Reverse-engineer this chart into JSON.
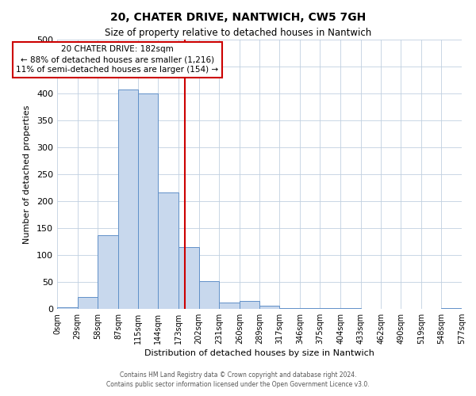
{
  "title": "20, CHATER DRIVE, NANTWICH, CW5 7GH",
  "subtitle": "Size of property relative to detached houses in Nantwich",
  "xlabel": "Distribution of detached houses by size in Nantwich",
  "ylabel": "Number of detached properties",
  "bin_edges": [
    0,
    29,
    58,
    87,
    115,
    144,
    173,
    202,
    231,
    260,
    289,
    317,
    346,
    375,
    404,
    433,
    462,
    490,
    519,
    548,
    577
  ],
  "bin_counts": [
    3,
    22,
    137,
    407,
    400,
    216,
    114,
    52,
    12,
    15,
    6,
    1,
    1,
    1,
    1,
    0,
    0,
    0,
    0,
    2
  ],
  "bar_facecolor": "#c8d8ed",
  "bar_edgecolor": "#6090c8",
  "property_size": 182,
  "vline_color": "#cc0000",
  "annotation_box_edgecolor": "#cc0000",
  "annotation_text_line1": "20 CHATER DRIVE: 182sqm",
  "annotation_text_line2": "← 88% of detached houses are smaller (1,216)",
  "annotation_text_line3": "11% of semi-detached houses are larger (154) →",
  "ylim": [
    0,
    500
  ],
  "yticks": [
    0,
    50,
    100,
    150,
    200,
    250,
    300,
    350,
    400,
    450,
    500
  ],
  "tick_labels": [
    "0sqm",
    "29sqm",
    "58sqm",
    "87sqm",
    "115sqm",
    "144sqm",
    "173sqm",
    "202sqm",
    "231sqm",
    "260sqm",
    "289sqm",
    "317sqm",
    "346sqm",
    "375sqm",
    "404sqm",
    "433sqm",
    "462sqm",
    "490sqm",
    "519sqm",
    "548sqm",
    "577sqm"
  ],
  "footer_line1": "Contains HM Land Registry data © Crown copyright and database right 2024.",
  "footer_line2": "Contains public sector information licensed under the Open Government Licence v3.0.",
  "background_color": "#ffffff",
  "grid_color": "#c0d0e0",
  "title_fontsize": 10,
  "subtitle_fontsize": 8.5,
  "xlabel_fontsize": 8,
  "ylabel_fontsize": 8,
  "tick_fontsize": 7,
  "ytick_fontsize": 8,
  "footer_fontsize": 5.5,
  "ann_fontsize": 7.5
}
